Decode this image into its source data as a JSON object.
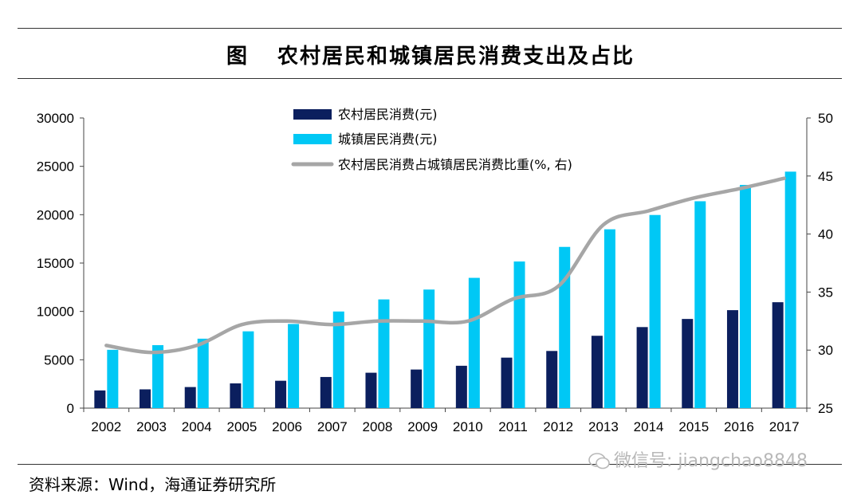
{
  "header": {
    "figure_label": "图",
    "title": "农村居民和城镇居民消费支出及占比"
  },
  "footer": {
    "source": "资料来源：Wind，海通证券研究所",
    "watermark": "微信号: jiangchao8848"
  },
  "colors": {
    "rural": "#0b1f5e",
    "urban": "#00c8f5",
    "ratio": "#a6a6a6"
  },
  "chart_data": {
    "type": "bar",
    "categories": [
      "2002",
      "2003",
      "2004",
      "2005",
      "2006",
      "2007",
      "2008",
      "2009",
      "2010",
      "2011",
      "2012",
      "2013",
      "2014",
      "2015",
      "2016",
      "2017"
    ],
    "series": [
      {
        "name": "农村居民消费(元)",
        "axis": "left",
        "type": "bar",
        "values": [
          1830,
          1940,
          2180,
          2560,
          2830,
          3220,
          3660,
          3990,
          4380,
          5220,
          5910,
          7480,
          8380,
          9220,
          10130,
          10950
        ]
      },
      {
        "name": "城镇居民消费(元)",
        "axis": "left",
        "type": "bar",
        "values": [
          6030,
          6510,
          7180,
          7940,
          8700,
          9990,
          11240,
          12260,
          13470,
          15160,
          16670,
          18490,
          19970,
          21390,
          23080,
          24450
        ]
      },
      {
        "name": "农村居民消费占城镇居民消费比重(%, 右)",
        "axis": "right",
        "type": "line",
        "values": [
          30.4,
          29.8,
          30.4,
          32.2,
          32.5,
          32.2,
          32.5,
          32.5,
          32.5,
          34.4,
          35.5,
          40.8,
          42.0,
          43.1,
          43.9,
          44.8
        ]
      }
    ],
    "left_axis": {
      "min": 0,
      "max": 30000,
      "ticks": [
        0,
        5000,
        10000,
        15000,
        20000,
        25000,
        30000
      ]
    },
    "right_axis": {
      "min": 25,
      "max": 50,
      "ticks": [
        25,
        30,
        35,
        40,
        45,
        50
      ]
    },
    "legend_position": "top-center",
    "grid": false
  }
}
